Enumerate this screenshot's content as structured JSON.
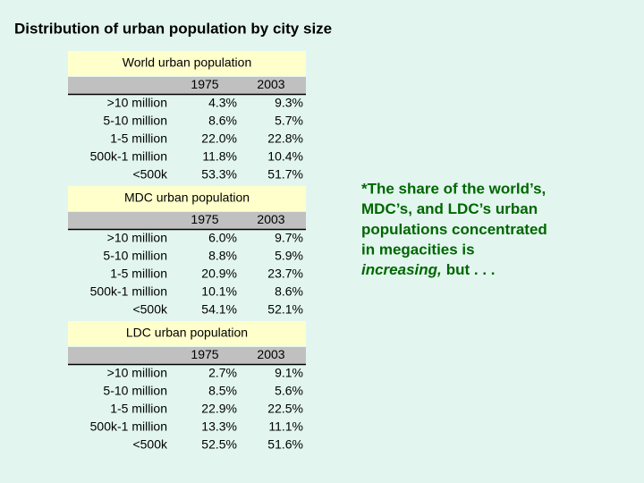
{
  "title": "Distribution of urban population by city size",
  "tables": [
    {
      "title": "World urban population",
      "columns": [
        "1975",
        "2003"
      ],
      "rows": [
        {
          "label": ">10 million",
          "values": [
            "4.3%",
            "9.3%"
          ]
        },
        {
          "label": "5-10 million",
          "values": [
            "8.6%",
            "5.7%"
          ]
        },
        {
          "label": "1-5 million",
          "values": [
            "22.0%",
            "22.8%"
          ]
        },
        {
          "label": "500k-1 million",
          "values": [
            "11.8%",
            "10.4%"
          ]
        },
        {
          "label": "<500k",
          "values": [
            "53.3%",
            "51.7%"
          ]
        }
      ]
    },
    {
      "title": "MDC urban population",
      "columns": [
        "1975",
        "2003"
      ],
      "rows": [
        {
          "label": ">10 million",
          "values": [
            "6.0%",
            "9.7%"
          ]
        },
        {
          "label": "5-10 million",
          "values": [
            "8.8%",
            "5.9%"
          ]
        },
        {
          "label": "1-5 million",
          "values": [
            "20.9%",
            "23.7%"
          ]
        },
        {
          "label": "500k-1 million",
          "values": [
            "10.1%",
            "8.6%"
          ]
        },
        {
          "label": "<500k",
          "values": [
            "54.1%",
            "52.1%"
          ]
        }
      ]
    },
    {
      "title": "LDC urban population",
      "columns": [
        "1975",
        "2003"
      ],
      "rows": [
        {
          "label": ">10 million",
          "values": [
            "2.7%",
            "9.1%"
          ]
        },
        {
          "label": "5-10 million",
          "values": [
            "8.5%",
            "5.6%"
          ]
        },
        {
          "label": "1-5 million",
          "values": [
            "22.9%",
            "22.5%"
          ]
        },
        {
          "label": "500k-1 million",
          "values": [
            "13.3%",
            "11.1%"
          ]
        },
        {
          "label": "<500k",
          "values": [
            "52.5%",
            "51.6%"
          ]
        }
      ]
    }
  ],
  "note": {
    "lines": [
      "*The share of the world’s,",
      "MDC’s, and LDC’s urban",
      "populations concentrated",
      "in megacities is"
    ],
    "emphasis": "increasing,",
    "tail": "but . . ."
  }
}
